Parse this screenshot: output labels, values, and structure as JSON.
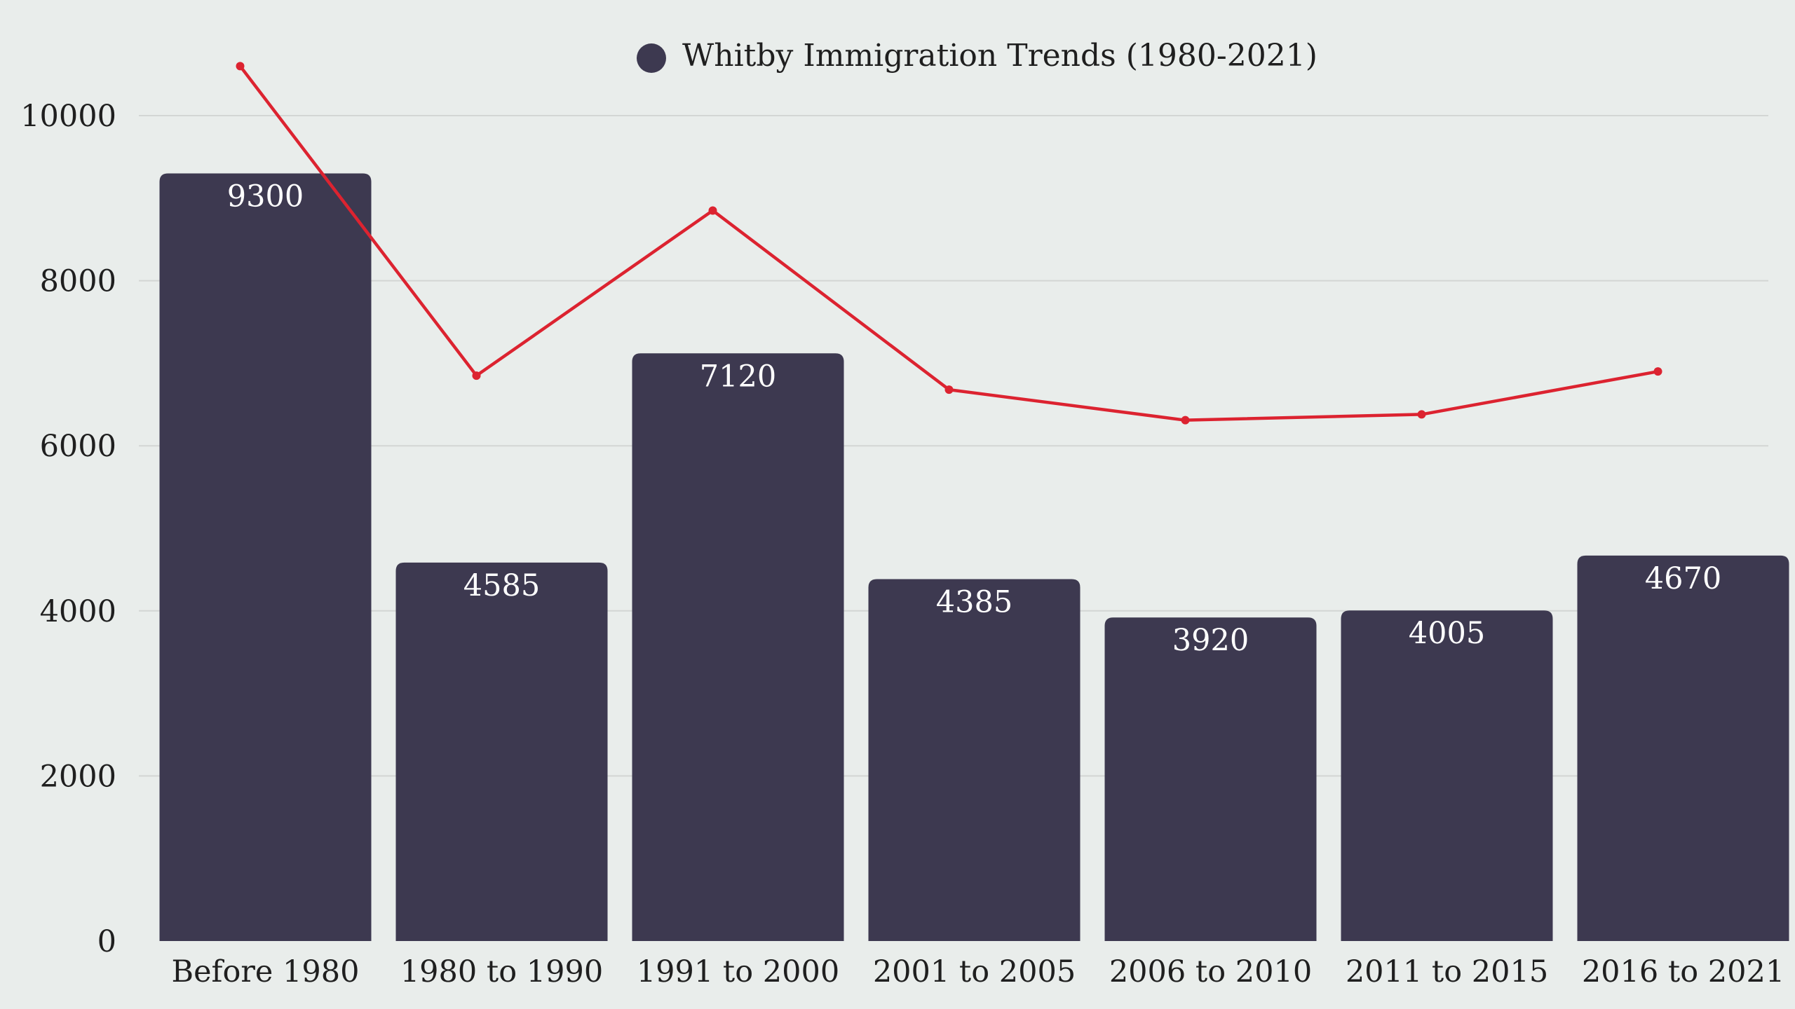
{
  "chart_data": {
    "type": "bar",
    "title": "Whitby Immigration Trends (1980-2021)",
    "legend": {
      "label": "Whitby Immigration Trends (1980-2021)",
      "position": "top-center"
    },
    "categories": [
      "Before 1980",
      "1980 to 1990",
      "1991 to 2000",
      "2001 to 2005",
      "2006 to 2010",
      "2011 to 2015",
      "2016 to 2021"
    ],
    "series": [
      {
        "name": "Whitby Immigration Trends (1980-2021)",
        "type": "bar",
        "values": [
          9300,
          4585,
          7120,
          4385,
          3920,
          4005,
          4670
        ],
        "data_labels": [
          "9300",
          "4585",
          "7120",
          "4385",
          "3920",
          "4005",
          "4670"
        ]
      },
      {
        "name": "trend line",
        "type": "line",
        "values": [
          10600,
          6850,
          8850,
          6680,
          6310,
          6380,
          6900
        ]
      }
    ],
    "xlabel": "",
    "ylabel": "",
    "ylim": [
      0,
      10000
    ],
    "yticks": [
      0,
      2000,
      4000,
      6000,
      8000,
      10000
    ],
    "ytick_labels": [
      "0",
      "2000",
      "4000",
      "6000",
      "8000",
      "10000"
    ],
    "grid": true
  },
  "colors": {
    "background": "#e9edeb",
    "bar": "#3d3950",
    "line": "#dc2330",
    "grid": "#d3d6d4",
    "text": "#1f1f1f",
    "bar_label": "#ffffff"
  }
}
